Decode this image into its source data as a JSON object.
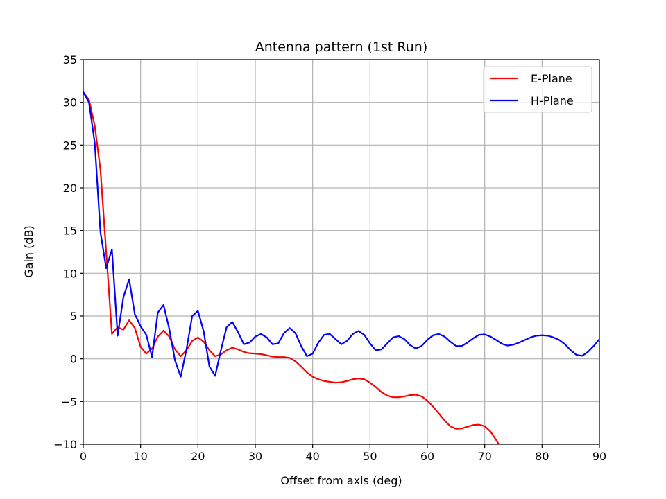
{
  "chart_data": {
    "type": "line",
    "title": "Antenna pattern (1st Run)",
    "xlabel": "Offset from axis (deg)",
    "ylabel": "Gain (dB)",
    "xlim": [
      0,
      90
    ],
    "ylim": [
      -10,
      35
    ],
    "xticks": [
      0,
      10,
      20,
      30,
      40,
      50,
      60,
      70,
      80,
      90
    ],
    "yticks": [
      -10,
      -5,
      0,
      5,
      10,
      15,
      20,
      25,
      30,
      35
    ],
    "xtick_labels": [
      "0",
      "10",
      "20",
      "30",
      "40",
      "50",
      "60",
      "70",
      "80",
      "90"
    ],
    "ytick_labels": [
      "−10",
      "−5",
      "0",
      "5",
      "10",
      "15",
      "20",
      "25",
      "30",
      "35"
    ],
    "grid": true,
    "legend_position": "top-right",
    "series": [
      {
        "name": "E-Plane",
        "color": "#ff0000",
        "x": [
          0,
          1,
          2,
          3,
          4,
          5,
          6,
          7,
          8,
          9,
          10,
          11,
          12,
          13,
          14,
          15,
          16,
          17,
          18,
          19,
          20,
          21,
          22,
          23,
          24,
          25,
          26,
          27,
          28,
          29,
          30,
          31,
          32,
          33,
          34,
          35,
          36,
          37,
          38,
          39,
          40,
          41,
          42,
          43,
          44,
          45,
          46,
          47,
          48,
          49,
          50,
          51,
          52,
          53,
          54,
          55,
          56,
          57,
          58,
          59,
          60,
          61,
          62,
          63,
          64,
          65,
          66,
          67,
          68,
          69,
          70,
          71,
          72,
          73
        ],
        "y": [
          31.2,
          30.3,
          27.3,
          22.1,
          12.5,
          2.9,
          3.7,
          3.4,
          4.5,
          3.6,
          1.4,
          0.6,
          1.2,
          2.6,
          3.3,
          2.6,
          1.1,
          0.3,
          1.0,
          2.1,
          2.5,
          2.0,
          1.0,
          0.3,
          0.5,
          1.0,
          1.3,
          1.1,
          0.8,
          0.65,
          0.6,
          0.55,
          0.4,
          0.25,
          0.2,
          0.2,
          0.1,
          -0.3,
          -0.9,
          -1.6,
          -2.1,
          -2.4,
          -2.6,
          -2.7,
          -2.8,
          -2.75,
          -2.6,
          -2.4,
          -2.3,
          -2.4,
          -2.8,
          -3.3,
          -3.9,
          -4.3,
          -4.5,
          -4.5,
          -4.4,
          -4.25,
          -4.2,
          -4.4,
          -4.9,
          -5.6,
          -6.4,
          -7.2,
          -7.9,
          -8.2,
          -8.15,
          -7.95,
          -7.75,
          -7.7,
          -7.9,
          -8.5,
          -9.5,
          -10.6
        ]
      },
      {
        "name": "H-Plane",
        "color": "#0000ff",
        "x": [
          0,
          1,
          2,
          3,
          4,
          5,
          6,
          7,
          8,
          9,
          10,
          11,
          12,
          13,
          14,
          15,
          16,
          17,
          18,
          19,
          20,
          21,
          22,
          23,
          24,
          25,
          26,
          27,
          28,
          29,
          30,
          31,
          32,
          33,
          34,
          35,
          36,
          37,
          38,
          39,
          40,
          41,
          42,
          43,
          44,
          45,
          46,
          47,
          48,
          49,
          50,
          51,
          52,
          53,
          54,
          55,
          56,
          57,
          58,
          59,
          60,
          61,
          62,
          63,
          64,
          65,
          66,
          67,
          68,
          69,
          70,
          71,
          72,
          73,
          74,
          75,
          76,
          77,
          78,
          79,
          80,
          81,
          82,
          83,
          84,
          85,
          86,
          87,
          88,
          89,
          90
        ],
        "y": [
          31.2,
          30.0,
          25.3,
          14.8,
          10.6,
          12.8,
          2.7,
          7.2,
          9.3,
          5.2,
          3.8,
          2.8,
          0.2,
          5.4,
          6.3,
          3.5,
          -0.2,
          -2.1,
          1.1,
          5.0,
          5.6,
          3.2,
          -0.9,
          -2.0,
          1.0,
          3.7,
          4.3,
          3.1,
          1.7,
          1.9,
          2.6,
          2.9,
          2.5,
          1.7,
          1.8,
          3.0,
          3.6,
          3.0,
          1.5,
          0.3,
          0.6,
          1.9,
          2.8,
          2.9,
          2.3,
          1.7,
          2.1,
          2.9,
          3.25,
          2.8,
          1.8,
          1.0,
          1.1,
          1.8,
          2.5,
          2.65,
          2.3,
          1.6,
          1.2,
          1.5,
          2.2,
          2.75,
          2.9,
          2.6,
          2.0,
          1.5,
          1.5,
          1.9,
          2.4,
          2.8,
          2.85,
          2.6,
          2.2,
          1.75,
          1.55,
          1.65,
          1.9,
          2.2,
          2.5,
          2.7,
          2.75,
          2.7,
          2.5,
          2.2,
          1.7,
          1.0,
          0.45,
          0.35,
          0.8,
          1.5,
          2.3
        ]
      }
    ]
  }
}
